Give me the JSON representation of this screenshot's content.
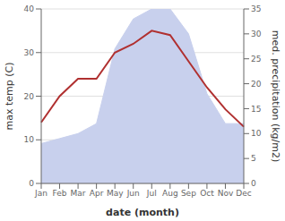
{
  "chart_data": {
    "type": "line",
    "xlabel": "date (month)",
    "ylabel": "max temp (C)",
    "y2label": "med. precipitation (kg/m2)",
    "categories": [
      "Jan",
      "Feb",
      "Mar",
      "Apr",
      "May",
      "Jun",
      "Jul",
      "Aug",
      "Sep",
      "Oct",
      "Nov",
      "Dec"
    ],
    "series": [
      {
        "type": "area",
        "color": "#c8d0ed",
        "axis": "y2",
        "values": [
          8,
          9,
          10,
          12,
          27,
          33,
          35,
          35,
          30,
          18,
          12,
          12
        ]
      },
      {
        "type": "line",
        "color": "#b03030",
        "values": [
          14,
          20,
          24,
          24,
          30,
          32,
          35,
          34,
          28,
          22,
          17,
          13
        ]
      }
    ],
    "ylim": [
      0,
      40
    ],
    "yticks": [
      0,
      10,
      20,
      30,
      40
    ],
    "y2lim": [
      0,
      35
    ],
    "y2ticks": [
      0,
      5,
      10,
      15,
      20,
      25,
      30,
      35
    ],
    "grid": true
  }
}
